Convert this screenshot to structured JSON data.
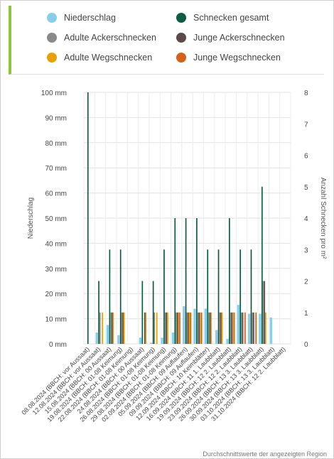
{
  "legend": [
    {
      "label": "Niederschlag",
      "color": "#87ceeb"
    },
    {
      "label": "Schnecken gesamt",
      "color": "#0b5e3f"
    },
    {
      "label": "Adulte Ackerschnecken",
      "color": "#8a8a8a"
    },
    {
      "label": "Junge Ackerschnecken",
      "color": "#5b4a4a"
    },
    {
      "label": "Adulte Wegschnecken",
      "color": "#e8a000"
    },
    {
      "label": "Junge Wegschnecken",
      "color": "#d4601a"
    }
  ],
  "footer": "Durchschnittswerte der angezeigten Region",
  "chart_data": {
    "type": "bar",
    "ylabel": "Niederschlag",
    "ylabel_right": "Anzahl Schnecken pro m²",
    "ylim": [
      0,
      100
    ],
    "ylim_right": [
      0,
      8
    ],
    "y_ticks_left": [
      "0 mm",
      "10 mm",
      "20 mm",
      "30 mm",
      "40 mm",
      "50 mm",
      "60 mm",
      "70 mm",
      "80 mm",
      "90 mm",
      "100 mm"
    ],
    "y_ticks_right": [
      "0",
      "1",
      "2",
      "3",
      "4",
      "5",
      "6",
      "7",
      "8"
    ],
    "categories": [
      "08.08.2024 (BBCH: vor Aussaat)",
      "12.08.2024 (BBCH: vor Aussaat)",
      "15.08.2024 (BBCH: 00 Aussaat)",
      "19.08.2024 (BBCH: 01-08 Keimung)",
      "22.08.2024 (BBCH: 01-08 Keimung)",
      "24.08.2024 (BBCH: 00 Aussaat)",
      "26.08.2024 (BBCH: 01-08 Keimung)",
      "29.08.2024 (BBCH: 01-08 Keimung)",
      "02.09.2024 (BBCH: 01-08 Keimung)",
      "05.09.2024 (BBCH: 09 Auflaufen)",
      "09.09.2024 (BBCH: 09 Auflaufen)",
      "12.09.2024 (BBCH: 10 Keimblätter)",
      "16.09.2024 (BBCH: 11 1. Laubblatt)",
      "19.09.2024 (BBCH: 12 2. Laubblatt)",
      "23.09.2024 (BBCH: 12 2. Laubblatt)",
      "26.09.2024 (BBCH: 13 3. Laubblatt)",
      "30.09.2024 (BBCH: 13 3. Laubblatt)",
      "03.10.2024 (BBCH: 13 3. Laubblatt)",
      "31.10.2024 (BBCH: 12 2. Laubblatt)"
    ],
    "series": [
      {
        "name": "Niederschlag",
        "axis": "left",
        "color": "#87ceeb",
        "values": [
          0,
          4.5,
          7.5,
          3.5,
          0,
          2.5,
          0.5,
          2.5,
          4.5,
          15,
          14,
          14,
          5.5,
          2,
          15.5,
          12,
          12,
          10.5,
          0
        ]
      },
      {
        "name": "Schnecken gesamt",
        "axis": "right",
        "color": "#0b5e3f",
        "values": [
          8,
          2,
          3,
          3,
          0,
          2,
          2,
          3,
          4,
          4,
          4,
          3,
          3,
          4,
          3,
          3,
          5,
          0,
          0
        ]
      },
      {
        "name": "Adulte Ackerschnecken",
        "axis": "right",
        "color": "#8a8a8a",
        "values": [
          0,
          1,
          1,
          1,
          0,
          0,
          1,
          1,
          1,
          1,
          1,
          1,
          1,
          1,
          1,
          1,
          2,
          0,
          0
        ]
      },
      {
        "name": "Junge Ackerschnecken",
        "axis": "right",
        "color": "#5b4a4a",
        "values": [
          0,
          0,
          1,
          1,
          0,
          1,
          0,
          1,
          1,
          1,
          1,
          1,
          1,
          1,
          1,
          1,
          2,
          0,
          0
        ]
      },
      {
        "name": "Adulte Wegschnecken",
        "axis": "right",
        "color": "#e8a000",
        "values": [
          0,
          1,
          1,
          1,
          0,
          1,
          1,
          1,
          1,
          1,
          1,
          1,
          1,
          1,
          0,
          0,
          1,
          0,
          0
        ]
      },
      {
        "name": "Junge Wegschnecken",
        "axis": "right",
        "color": "#d4601a",
        "values": [
          0,
          0,
          0,
          0,
          0,
          0,
          0,
          0,
          1,
          1,
          1,
          0,
          0,
          1,
          1,
          1,
          0,
          0,
          0
        ]
      }
    ]
  }
}
